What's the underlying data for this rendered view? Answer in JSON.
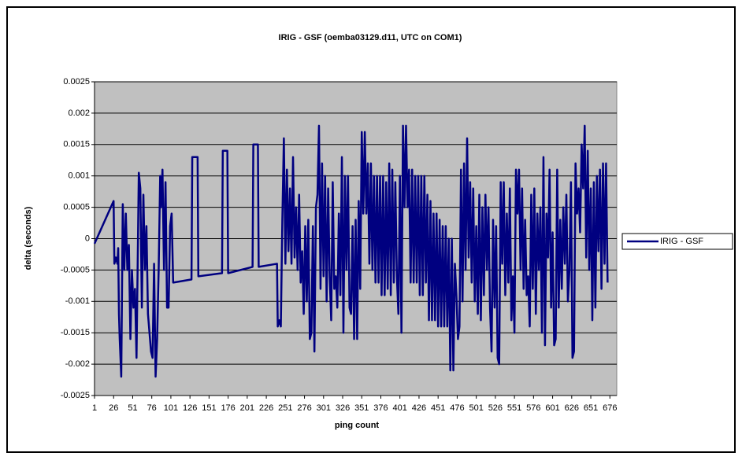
{
  "chart_data": {
    "type": "line",
    "title": "IRIG - GSF (oemba03129.d11, UTC on COM1)",
    "x_label": "ping count",
    "y_label": "delta (seconds)",
    "xlim": [
      1,
      685
    ],
    "xticks": [
      1,
      26,
      51,
      76,
      101,
      126,
      151,
      176,
      201,
      226,
      251,
      276,
      301,
      326,
      351,
      376,
      401,
      426,
      451,
      476,
      501,
      526,
      551,
      576,
      601,
      626,
      651,
      676
    ],
    "ylim": [
      -0.0025,
      0.0025
    ],
    "yticks": [
      0.0025,
      0.002,
      0.0015,
      0.001,
      0.0005,
      0,
      -0.0005,
      -0.001,
      -0.0015,
      -0.002,
      -0.0025
    ],
    "grid": true,
    "legend": "right",
    "x": [
      1,
      26,
      27,
      29,
      31,
      32,
      33,
      34,
      36,
      38,
      40,
      42,
      44,
      46,
      48,
      50,
      52,
      54,
      56,
      59,
      61,
      63,
      65,
      67,
      69,
      71,
      73,
      75,
      77,
      79,
      81,
      83,
      85,
      87,
      88,
      90,
      92,
      94,
      96,
      98,
      100,
      102,
      104,
      128,
      129,
      136,
      137,
      168,
      169,
      175,
      176,
      208,
      209,
      215,
      216,
      240,
      241,
      243,
      245,
      247,
      249,
      251,
      253,
      255,
      257,
      259,
      261,
      263,
      265,
      267,
      269,
      271,
      273,
      275,
      277,
      279,
      281,
      283,
      285,
      287,
      289,
      291,
      293,
      295,
      297,
      299,
      301,
      303,
      305,
      307,
      309,
      311,
      313,
      315,
      317,
      319,
      321,
      323,
      325,
      327,
      329,
      331,
      333,
      335,
      337,
      339,
      341,
      343,
      345,
      347,
      349,
      351,
      353,
      355,
      357,
      359,
      361,
      363,
      365,
      367,
      369,
      371,
      373,
      375,
      377,
      379,
      381,
      383,
      385,
      387,
      389,
      391,
      393,
      395,
      397,
      399,
      401,
      403,
      405,
      407,
      409,
      411,
      413,
      415,
      417,
      419,
      421,
      423,
      425,
      427,
      429,
      431,
      433,
      435,
      437,
      439,
      441,
      443,
      445,
      447,
      449,
      451,
      453,
      455,
      457,
      459,
      461,
      463,
      465,
      467,
      469,
      471,
      473,
      475,
      477,
      479,
      481,
      483,
      485,
      487,
      489,
      491,
      493,
      495,
      497,
      499,
      501,
      503,
      505,
      507,
      509,
      511,
      513,
      515,
      517,
      519,
      521,
      523,
      525,
      527,
      529,
      531,
      533,
      535,
      537,
      539,
      541,
      543,
      545,
      547,
      549,
      551,
      553,
      555,
      557,
      559,
      561,
      563,
      565,
      567,
      569,
      571,
      573,
      575,
      577,
      579,
      581,
      583,
      585,
      587,
      589,
      591,
      593,
      595,
      597,
      599,
      601,
      603,
      605,
      607,
      609,
      611,
      613,
      615,
      617,
      619,
      621,
      623,
      625,
      627,
      629,
      631,
      633,
      635,
      637,
      639,
      641,
      643,
      645,
      647,
      649,
      651,
      653,
      655,
      657,
      659,
      661,
      663,
      665,
      667,
      669,
      671,
      673
    ],
    "series": [
      {
        "name": "IRIG - GSF",
        "color": "#000080",
        "values": [
          -8e-05,
          0.0006,
          -0.0004,
          -0.0003,
          -0.0004,
          -0.00015,
          -0.0012,
          -0.0016,
          -0.0022,
          0.00055,
          -0.0005,
          0.0004,
          -0.0005,
          -0.0001,
          -0.0016,
          -0.0005,
          -0.0011,
          -0.0008,
          -0.0019,
          0.00105,
          0.0008,
          -0.0011,
          0.0007,
          -0.0005,
          0.0002,
          -0.0012,
          -0.0015,
          -0.0018,
          -0.0019,
          -0.0004,
          -0.0022,
          -0.0016,
          -0.0005,
          0.001,
          0.0005,
          0.0011,
          -0.0005,
          0.0009,
          -0.0011,
          -0.0011,
          0.0002,
          0.0004,
          -0.0007,
          -0.00065,
          0.0013,
          0.0013,
          -0.0006,
          -0.00055,
          0.0014,
          0.0014,
          -0.00055,
          -0.00045,
          0.0015,
          0.0015,
          -0.00045,
          -0.0004,
          -0.0014,
          -0.0013,
          -0.0014,
          0.0003,
          0.0016,
          -0.0004,
          0.0011,
          -0.0002,
          0.0008,
          -0.0004,
          0.0013,
          -0.0003,
          0.0005,
          -0.0005,
          0.0007,
          -0.0007,
          -0.0002,
          -0.0012,
          0.0002,
          -0.001,
          0.0003,
          -0.0016,
          -0.0015,
          0.0002,
          -0.0018,
          0.0005,
          0.0007,
          0.0018,
          -0.0008,
          0.0012,
          -0.0006,
          0.001,
          -0.001,
          0.0008,
          -0.0006,
          -0.0013,
          0.0009,
          -0.0008,
          -0.0006,
          -0.0011,
          0.0004,
          -0.0009,
          0.0013,
          -0.0015,
          0.001,
          -0.0005,
          0.001,
          -0.0011,
          -0.0012,
          0.0002,
          -0.0016,
          0.0003,
          -0.0016,
          0.0006,
          -0.0008,
          0.0017,
          0.0004,
          0.0017,
          0.0004,
          0.0012,
          -0.0004,
          0.0012,
          -0.0005,
          0.001,
          -0.0007,
          0.001,
          -0.0007,
          0.001,
          -0.0009,
          0.001,
          -0.0009,
          0.0009,
          -0.0008,
          0.0012,
          -0.0009,
          0.0011,
          -0.0007,
          0.0009,
          -0.0006,
          -0.0012,
          0.001,
          -0.0015,
          0.0018,
          0.0005,
          0.0018,
          0.0005,
          0.0011,
          -0.0007,
          0.0011,
          -0.0007,
          0.001,
          -0.0007,
          0.001,
          -0.0009,
          0.001,
          -0.0009,
          0.001,
          -0.0007,
          0.0007,
          -0.0013,
          0.0006,
          -0.0013,
          0.0004,
          -0.0013,
          0.0004,
          -0.0014,
          0.0003,
          -0.0014,
          0.0002,
          -0.0014,
          0.0002,
          -0.0014,
          0,
          -0.0021,
          0,
          -0.0021,
          -0.0004,
          -0.0009,
          -0.0016,
          -0.0014,
          0.0011,
          -0.001,
          0.0012,
          -0.0005,
          0.0016,
          -0.0003,
          0.0009,
          -0.0007,
          0.0008,
          -0.001,
          0.0002,
          -0.0012,
          0.0007,
          -0.0013,
          0.0005,
          -0.0009,
          0.0007,
          -0.0005,
          0.0005,
          -0.0011,
          -0.0018,
          0.0003,
          -0.0011,
          0.0002,
          -0.0019,
          -0.002,
          0.0009,
          -0.0004,
          0.0009,
          -0.0009,
          0.0004,
          -0.0007,
          0.0008,
          -0.0013,
          -0.0006,
          -0.0015,
          0.0011,
          0.0004,
          0.0011,
          -0.0005,
          0.0008,
          -0.0008,
          0.0003,
          -0.0009,
          -0.0006,
          -0.0014,
          0.0007,
          -0.0008,
          0.0008,
          -0.0012,
          0.0004,
          -0.0005,
          0.0005,
          -0.0015,
          0.0013,
          -0.0017,
          0.0004,
          -0.0003,
          0.0011,
          -0.0011,
          0.0001,
          -0.0017,
          -0.0016,
          0.0011,
          -0.0011,
          0.0003,
          -0.0008,
          0.0005,
          -0.0004,
          0.0007,
          -0.001,
          -0.0005,
          0.0009,
          -0.0019,
          -0.0018,
          0.0012,
          0.0004,
          0.0008,
          0.0001,
          0.0015,
          0.0008,
          0.0018,
          -0.0003,
          0.0014,
          -0.0005,
          0.0008,
          -0.0013,
          0.0009,
          -0.0011,
          0.001,
          -0.0002,
          0.0011,
          -0.0008,
          0.0012,
          -0.0004,
          0.0012,
          -0.0007
        ]
      }
    ]
  }
}
